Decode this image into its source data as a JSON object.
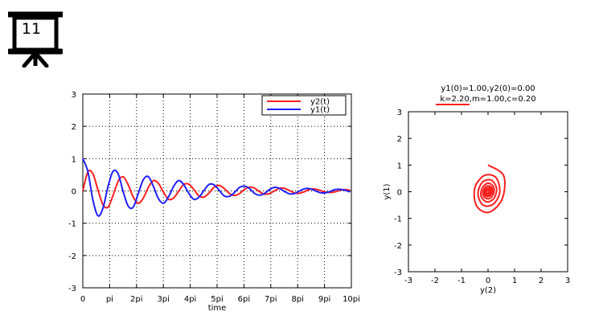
{
  "badge": {
    "number": "11",
    "icon": "presentation-board-icon"
  },
  "chart_data": [
    {
      "type": "line",
      "title": "",
      "xlabel": "time",
      "ylabel": "",
      "xlim": [
        0,
        31.4159
      ],
      "ylim": [
        -3,
        3
      ],
      "xticks": [
        {
          "value": 0,
          "label": "0"
        },
        {
          "value": 3.14159,
          "label": "pi"
        },
        {
          "value": 6.28319,
          "label": "2pi"
        },
        {
          "value": 9.42478,
          "label": "3pi"
        },
        {
          "value": 12.56637,
          "label": "4pi"
        },
        {
          "value": 15.70796,
          "label": "5pi"
        },
        {
          "value": 18.84956,
          "label": "6pi"
        },
        {
          "value": 21.99115,
          "label": "7pi"
        },
        {
          "value": 25.13274,
          "label": "8pi"
        },
        {
          "value": 28.27433,
          "label": "9pi"
        },
        {
          "value": 31.41593,
          "label": "10pi"
        }
      ],
      "yticks": [
        -3,
        -2,
        -1,
        0,
        1,
        2,
        3
      ],
      "grid": true,
      "legend_position": "top-right",
      "series": [
        {
          "name": "y2(t)",
          "color": "#ff2020",
          "x": [
            0,
            0.59,
            1.18,
            1.77,
            2.36,
            2.95,
            3.54,
            4.13,
            4.72,
            5.31,
            5.9,
            6.49,
            7.08,
            7.67,
            8.26,
            8.85,
            9.44,
            10.03,
            10.62,
            11.21,
            11.8,
            12.39,
            12.98,
            13.57,
            14.16,
            14.75,
            15.34,
            15.93,
            16.52,
            17.11,
            17.7,
            18.29,
            18.88,
            19.47,
            20.06,
            20.65,
            21.24,
            21.83,
            22.42,
            23.01,
            23.6,
            24.19,
            24.78,
            25.37,
            25.96,
            26.55,
            27.14,
            27.73,
            28.32,
            28.91,
            29.5,
            30.09,
            30.68,
            31.27
          ],
          "values": [
            0,
            0.59,
            0.53,
            0.03,
            -0.43,
            -0.5,
            -0.14,
            0.3,
            0.44,
            0.19,
            -0.19,
            -0.38,
            -0.22,
            0.11,
            0.32,
            0.23,
            -0.04,
            -0.26,
            -0.22,
            -0.01,
            0.2,
            0.21,
            0.05,
            -0.15,
            -0.19,
            -0.07,
            0.11,
            0.17,
            0.08,
            -0.07,
            -0.14,
            -0.09,
            0.04,
            0.12,
            0.09,
            -0.02,
            -0.1,
            -0.08,
            0.0,
            0.08,
            0.08,
            0.01,
            -0.06,
            -0.07,
            -0.02,
            0.05,
            0.06,
            0.02,
            -0.03,
            -0.05,
            -0.03,
            0.02,
            0.04,
            0.02
          ]
        },
        {
          "name": "y1(t)",
          "color": "#2020ff",
          "x": [
            0,
            0.59,
            1.18,
            1.77,
            2.36,
            2.95,
            3.54,
            4.13,
            4.72,
            5.31,
            5.9,
            6.49,
            7.08,
            7.67,
            8.26,
            8.85,
            9.44,
            10.03,
            10.62,
            11.21,
            11.8,
            12.39,
            12.98,
            13.57,
            14.16,
            14.75,
            15.34,
            15.93,
            16.52,
            17.11,
            17.7,
            18.29,
            18.88,
            19.47,
            20.06,
            20.65,
            21.24,
            21.83,
            22.42,
            23.01,
            23.6,
            24.19,
            24.78,
            25.37,
            25.96,
            26.55,
            27.14,
            27.73,
            28.32,
            28.91,
            29.5,
            30.09,
            30.68,
            31.27
          ],
          "values": [
            1.0,
            0.6,
            -0.28,
            -0.77,
            -0.53,
            0.14,
            0.61,
            0.53,
            -0.02,
            -0.47,
            -0.5,
            -0.08,
            0.35,
            0.44,
            0.14,
            -0.24,
            -0.38,
            -0.18,
            0.14,
            0.32,
            0.2,
            -0.07,
            -0.26,
            -0.2,
            0.01,
            0.2,
            0.19,
            0.03,
            -0.15,
            -0.17,
            -0.06,
            0.1,
            0.15,
            0.08,
            -0.07,
            -0.13,
            -0.08,
            0.04,
            0.11,
            0.08,
            -0.02,
            -0.09,
            -0.08,
            0.0,
            0.07,
            0.07,
            0.01,
            -0.05,
            -0.06,
            -0.02,
            0.04,
            0.05,
            0.02,
            -0.03
          ]
        }
      ]
    },
    {
      "type": "line",
      "title": "y1(0)=1.00,y2(0)=0.00",
      "subtitle": "k=2.20,m=1.00,c=0.20",
      "xlabel": "y(2)",
      "ylabel": "y(1)",
      "xlim": [
        -3,
        3
      ],
      "ylim": [
        -3,
        3
      ],
      "xticks": [
        -3,
        -2,
        -1,
        0,
        1,
        2,
        3
      ],
      "yticks": [
        -3,
        -2,
        -1,
        0,
        1,
        2,
        3
      ],
      "grid": false,
      "series": [
        {
          "color": "#ff2020",
          "x": [
            0,
            0.59,
            0.53,
            0.03,
            -0.43,
            -0.5,
            -0.14,
            0.3,
            0.44,
            0.19,
            -0.19,
            -0.38,
            -0.22,
            0.11,
            0.32,
            0.23,
            -0.04,
            -0.26,
            -0.22,
            -0.01,
            0.2,
            0.21,
            0.05,
            -0.15,
            -0.19,
            -0.07,
            0.11,
            0.17,
            0.08,
            -0.07,
            -0.14,
            -0.09,
            0.04,
            0.12,
            0.09,
            -0.02,
            -0.1,
            -0.08,
            0.0,
            0.08,
            0.08,
            0.01,
            -0.06,
            -0.07,
            -0.02,
            0.05,
            0.06,
            0.02,
            -0.03,
            -0.05,
            -0.03,
            0.02,
            0.04,
            0.02
          ],
          "values": [
            1.0,
            0.6,
            -0.28,
            -0.77,
            -0.53,
            0.14,
            0.61,
            0.53,
            -0.02,
            -0.47,
            -0.5,
            -0.08,
            0.35,
            0.44,
            0.14,
            -0.24,
            -0.38,
            -0.18,
            0.14,
            0.32,
            0.2,
            -0.07,
            -0.26,
            -0.2,
            0.01,
            0.2,
            0.19,
            0.03,
            -0.15,
            -0.17,
            -0.06,
            0.1,
            0.15,
            0.08,
            -0.07,
            -0.13,
            -0.08,
            0.04,
            0.11,
            0.08,
            -0.02,
            -0.09,
            -0.08,
            0.0,
            0.07,
            0.07,
            0.01,
            -0.05,
            -0.06,
            -0.02,
            0.04,
            0.05,
            0.02,
            -0.03
          ]
        }
      ]
    }
  ]
}
